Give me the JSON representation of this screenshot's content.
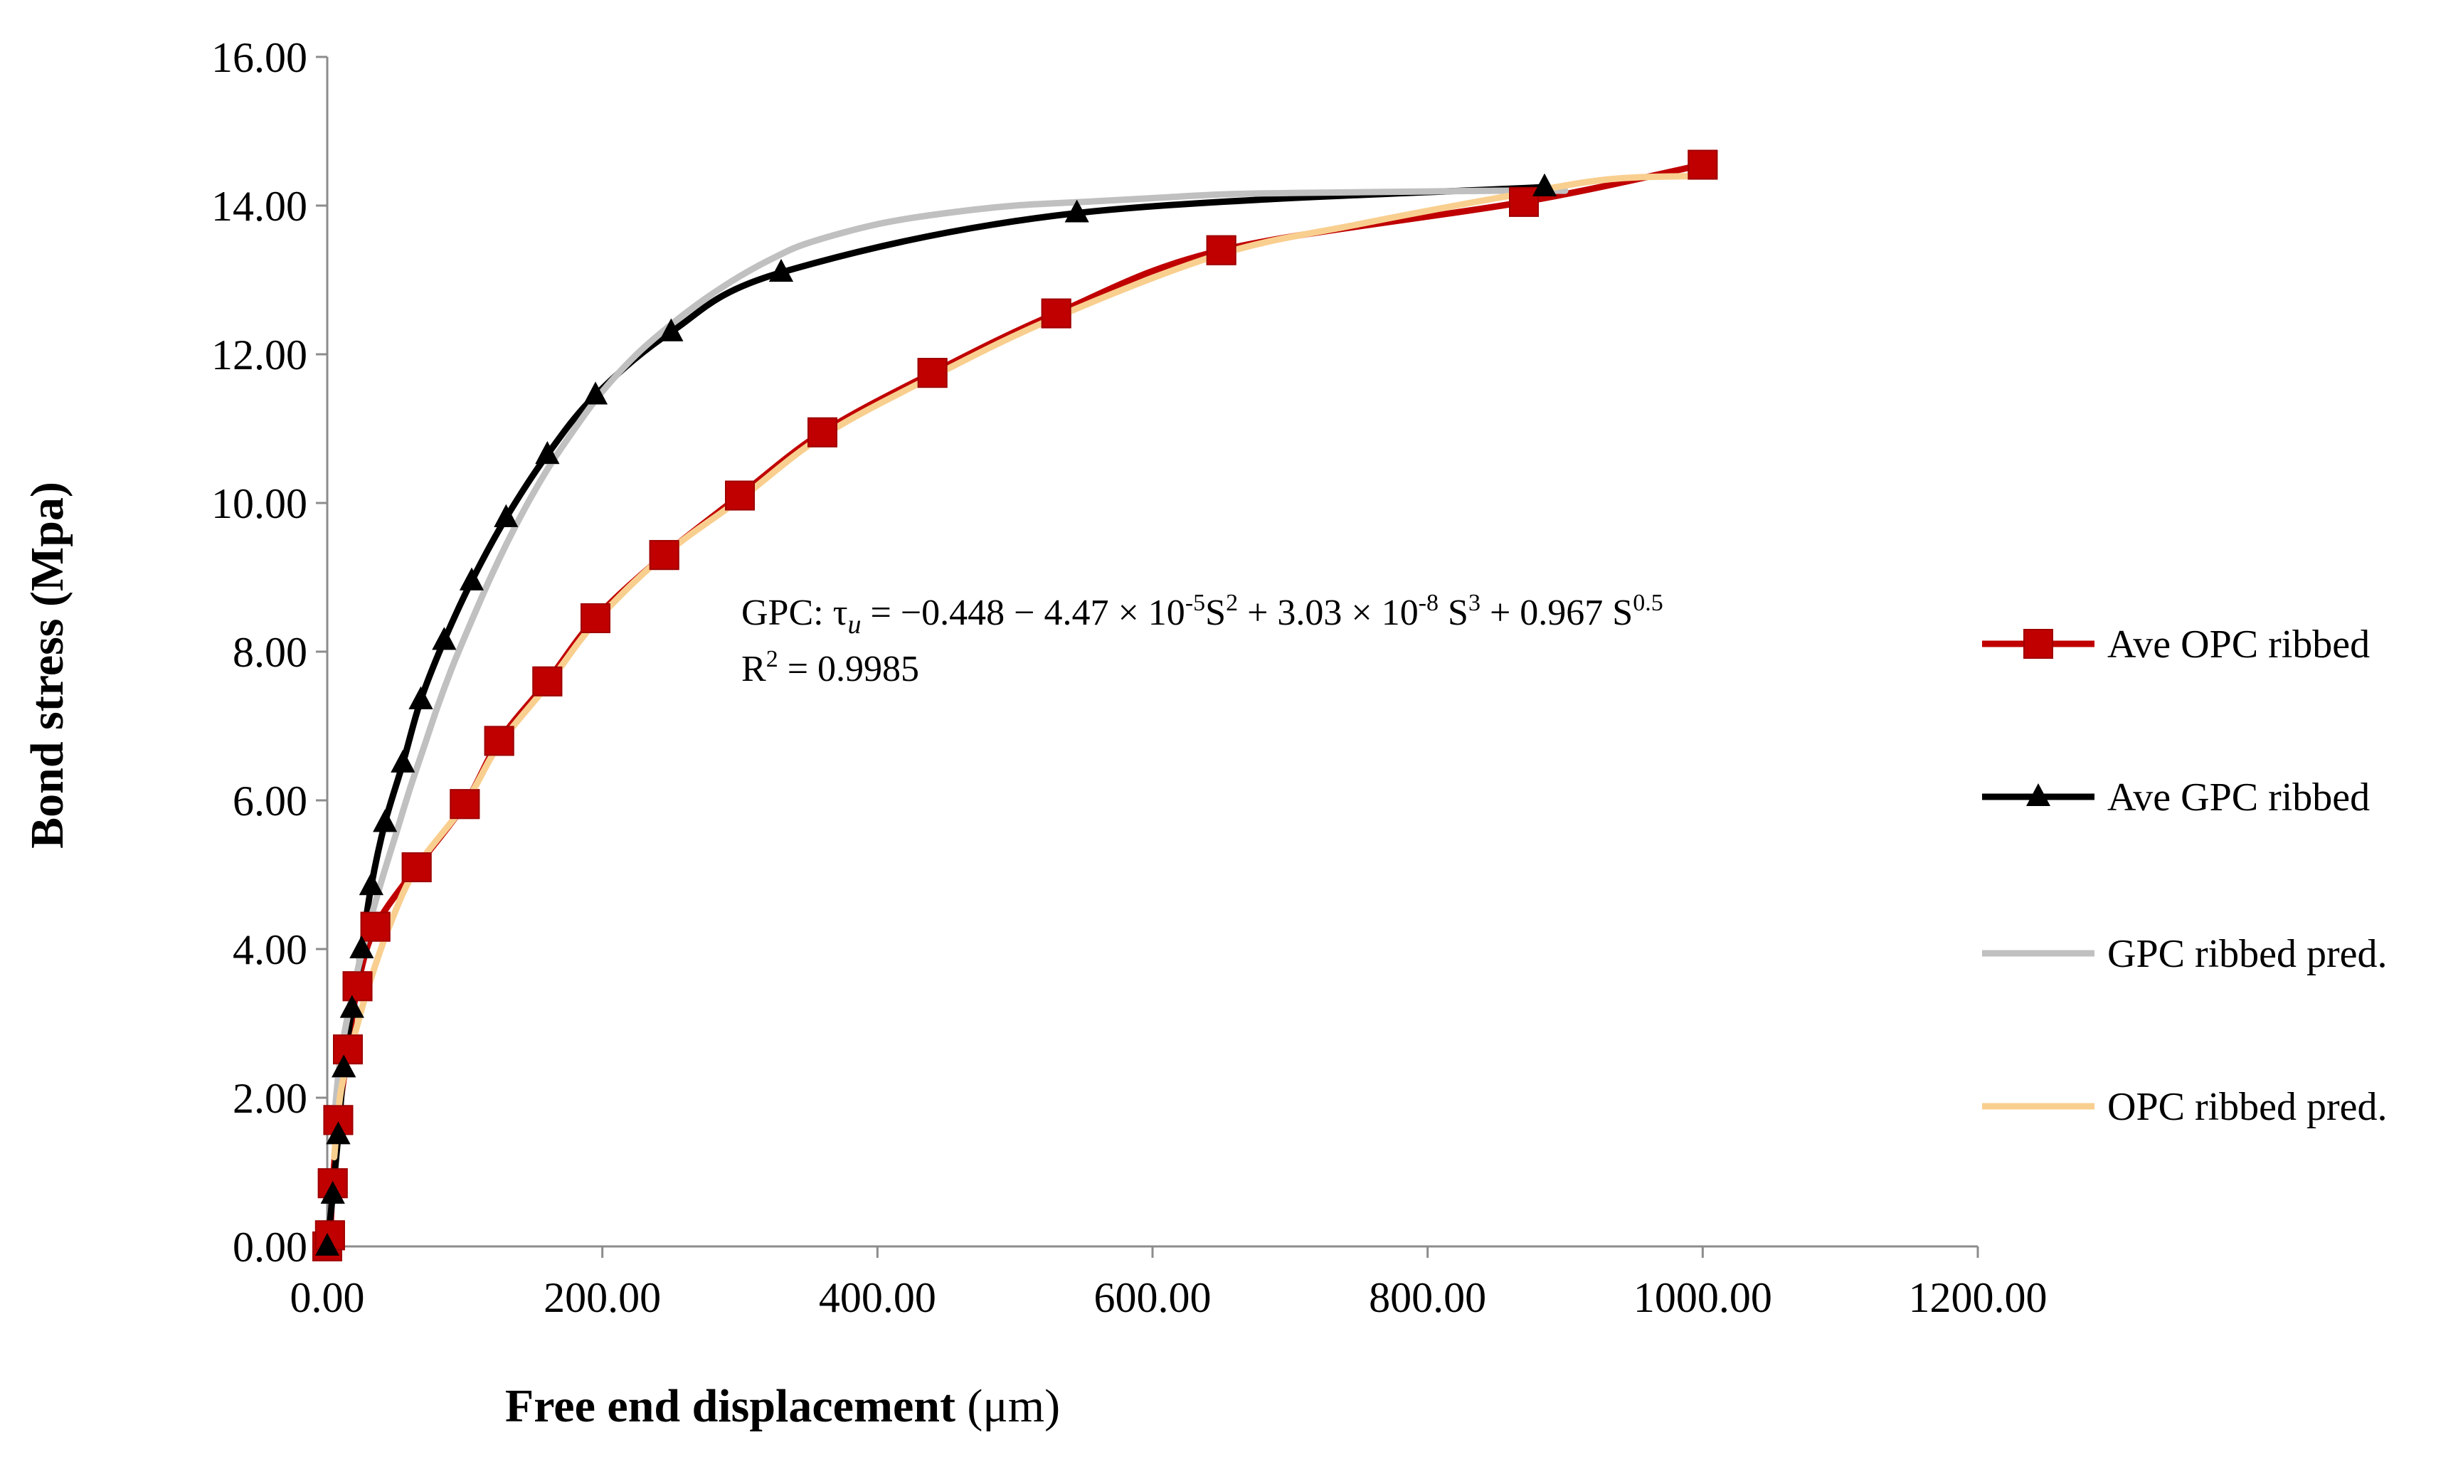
{
  "chart_data": {
    "type": "line",
    "title": "",
    "xlabel": "Free end displacement (μm)",
    "xlabel_parts": {
      "bold": "Free end displacement",
      "plain": " (μm)"
    },
    "ylabel": "Bond stress (Mpa)",
    "xlim": [
      0,
      1200
    ],
    "ylim": [
      0,
      16
    ],
    "xticks": [
      0,
      200,
      400,
      600,
      800,
      1000,
      1200
    ],
    "yticks": [
      0,
      2,
      4,
      6,
      8,
      10,
      12,
      14,
      16
    ],
    "xtick_labels": [
      "0.00",
      "200.00",
      "400.00",
      "600.00",
      "800.00",
      "1000.00",
      "1200.00"
    ],
    "ytick_labels": [
      "0.00",
      "2.00",
      "4.00",
      "6.00",
      "8.00",
      "10.00",
      "12.00",
      "14.00",
      "16.00"
    ],
    "grid": false,
    "legend_position": "right",
    "series": [
      {
        "name": "Ave OPC ribbed",
        "color": "#c00000",
        "marker": "square",
        "x": [
          0,
          2,
          4,
          8,
          15,
          22,
          35,
          65,
          100,
          125,
          160,
          195,
          245,
          300,
          360,
          440,
          530,
          650,
          870,
          1000
        ],
        "y": [
          0,
          0.15,
          0.85,
          1.7,
          2.65,
          3.5,
          4.3,
          5.1,
          5.95,
          6.8,
          7.6,
          8.45,
          9.3,
          10.1,
          10.95,
          11.75,
          12.55,
          13.4,
          14.05,
          14.55
        ]
      },
      {
        "name": "Ave GPC ribbed",
        "color": "#000000",
        "marker": "triangle",
        "x": [
          0,
          4,
          8,
          12,
          18,
          25,
          32,
          42,
          55,
          68,
          85,
          105,
          130,
          160,
          195,
          250,
          330,
          545,
          885
        ],
        "y": [
          0,
          0.7,
          1.5,
          2.4,
          3.2,
          4.0,
          4.85,
          5.7,
          6.5,
          7.35,
          8.15,
          8.95,
          9.8,
          10.65,
          11.45,
          12.3,
          13.1,
          13.9,
          14.25
        ]
      },
      {
        "name": "GPC ribbed pred.",
        "color": "#c0c0c0",
        "marker": "none",
        "x": [
          5,
          10,
          20,
          30,
          40,
          50,
          60,
          70,
          80,
          90,
          100,
          120,
          140,
          160,
          180,
          200,
          225,
          250,
          275,
          300,
          325,
          350,
          400,
          450,
          500,
          550,
          600,
          650,
          700,
          750,
          800,
          850,
          900
        ],
        "y": [
          1.7,
          2.6,
          3.55,
          4.3,
          4.95,
          5.55,
          6.15,
          6.7,
          7.25,
          7.75,
          8.2,
          9.05,
          9.8,
          10.45,
          11.0,
          11.5,
          12.0,
          12.4,
          12.75,
          13.05,
          13.3,
          13.5,
          13.75,
          13.9,
          14.0,
          14.05,
          14.1,
          14.15,
          14.17,
          14.18,
          14.19,
          14.2,
          14.2
        ]
      },
      {
        "name": "OPC ribbed pred.",
        "color": "#f9cf8f",
        "marker": "none",
        "x": [
          5,
          10,
          20,
          30,
          45,
          65,
          100,
          125,
          160,
          195,
          245,
          300,
          360,
          440,
          530,
          650,
          750,
          850,
          930,
          1000
        ],
        "y": [
          1.2,
          2.1,
          2.85,
          3.5,
          4.3,
          5.1,
          5.95,
          6.75,
          7.55,
          8.4,
          9.3,
          10.05,
          10.9,
          11.7,
          12.5,
          13.35,
          13.75,
          14.1,
          14.35,
          14.4
        ]
      }
    ],
    "annotations": {
      "equation_prefix": "GPC: τ",
      "equation_sub": "u",
      "equation_p1": " = −0.448 − 4.47 × 10",
      "equation_e1": "-5",
      "equation_p2": "S",
      "equation_e2": "2",
      "equation_p3": "  + 3.03 × 10",
      "equation_e3": "-8",
      "equation_p4": "  S",
      "equation_e4": "3",
      "equation_p5": " + 0.967 S",
      "equation_e5": "0.5",
      "r2_prefix": "R",
      "r2_exp": "2",
      "r2_value": " = 0.9985"
    }
  }
}
